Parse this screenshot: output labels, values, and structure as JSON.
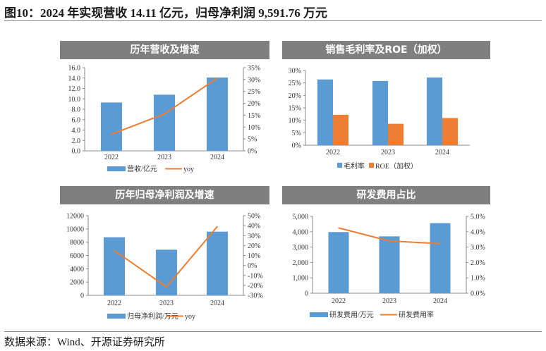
{
  "title": "图10：2024 年实现营收 14.11 亿元，归母净利润 9,591.76 万元",
  "source": "数据来源：Wind、开源证券研究所",
  "colors": {
    "bar": "#5b9bd5",
    "line": "#ed7d31",
    "header_bg": "#7f7f7f"
  },
  "chart_data": [
    {
      "type": "bar+line",
      "title": "历年营收及增速",
      "categories": [
        "2022",
        "2023",
        "2024"
      ],
      "left_ticks": [
        "0.0",
        "2.0",
        "4.0",
        "6.0",
        "8.0",
        "10.0",
        "12.0",
        "14.0",
        "16.0"
      ],
      "ylim": [
        0,
        16
      ],
      "right_ticks": [
        "0%",
        "5%",
        "10%",
        "15%",
        "20%",
        "25%",
        "30%",
        "35%"
      ],
      "y2lim": [
        0,
        35
      ],
      "series": [
        {
          "name": "营收/亿元",
          "kind": "bar",
          "values": [
            9.3,
            10.8,
            14.11
          ]
        },
        {
          "name": "yoy",
          "kind": "line",
          "values": [
            7.0,
            15.5,
            30.6
          ]
        }
      ]
    },
    {
      "type": "bar",
      "title": "销售毛利率及ROE（加权）",
      "categories": [
        "2022",
        "2023",
        "2024"
      ],
      "left_ticks": [
        "0%",
        "5%",
        "10%",
        "15%",
        "20%",
        "25%",
        "30%"
      ],
      "ylim": [
        0,
        30
      ],
      "series": [
        {
          "name": "毛利率",
          "kind": "bar",
          "values": [
            26.4,
            25.8,
            27.2
          ]
        },
        {
          "name": "ROE（加权）",
          "kind": "bar",
          "values": [
            12.2,
            8.6,
            10.9
          ]
        }
      ]
    },
    {
      "type": "bar+line",
      "title": "历年归母净利润及增速",
      "categories": [
        "2022",
        "2023",
        "2024"
      ],
      "left_ticks": [
        "0",
        "2000",
        "4000",
        "6000",
        "8000",
        "10000",
        "12000"
      ],
      "ylim": [
        0,
        12000
      ],
      "right_ticks": [
        "-30%",
        "-20%",
        "-10%",
        "0%",
        "10%",
        "20%",
        "30%",
        "40%",
        "50%"
      ],
      "y2lim": [
        -30,
        50
      ],
      "series": [
        {
          "name": "归母净利润/万元",
          "kind": "bar",
          "values": [
            8750,
            6880,
            9591.76
          ]
        },
        {
          "name": "yoy",
          "kind": "line",
          "values": [
            15.0,
            -21.5,
            39.0
          ]
        }
      ]
    },
    {
      "type": "bar+line",
      "title": "研发费用占比",
      "categories": [
        "2022",
        "2023",
        "2024"
      ],
      "left_ticks": [
        "0",
        "1,000",
        "2,000",
        "3,000",
        "4,000",
        "5,000"
      ],
      "ylim": [
        0,
        5000
      ],
      "right_ticks": [
        "0.0%",
        "1.0%",
        "2.0%",
        "3.0%",
        "4.0%",
        "5.0%"
      ],
      "y2lim": [
        0,
        5
      ],
      "series": [
        {
          "name": "研发费用/万元",
          "kind": "bar",
          "values": [
            3980,
            3700,
            4560
          ]
        },
        {
          "name": "研发费用率",
          "kind": "line",
          "values": [
            4.25,
            3.4,
            3.22
          ]
        }
      ]
    }
  ]
}
